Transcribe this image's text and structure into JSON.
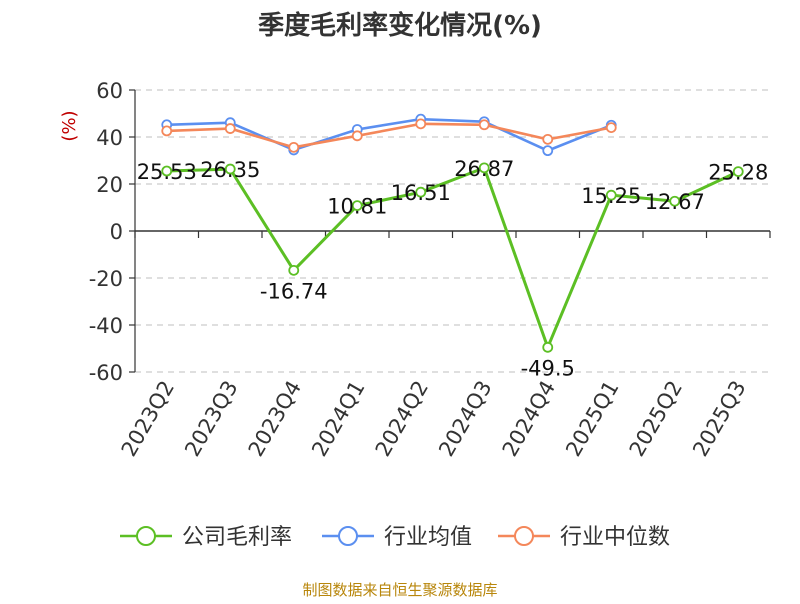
{
  "chart_data": {
    "type": "line",
    "title": "季度毛利率变化情况(%)",
    "ylabel": "(%)",
    "xlabel": "",
    "categories": [
      "2023Q2",
      "2023Q3",
      "2023Q4",
      "2024Q1",
      "2024Q2",
      "2024Q3",
      "2024Q4",
      "2025Q1",
      "2025Q2",
      "2025Q3"
    ],
    "ylim": [
      -60,
      60
    ],
    "yticks": [
      -60,
      -40,
      -20,
      0,
      20,
      40,
      60
    ],
    "grid": true,
    "legend": "bottom",
    "series": [
      {
        "name": "公司毛利率",
        "color": "#5cbf24",
        "values": [
          25.53,
          26.35,
          -16.74,
          10.81,
          16.51,
          26.87,
          -49.5,
          15.25,
          12.67,
          25.28
        ],
        "labels": [
          "25.53",
          "26.35",
          "-16.74",
          "10.81",
          "16.51",
          "26.87",
          "-49.5",
          "15.25",
          "12.67",
          "25.28"
        ]
      },
      {
        "name": "行业均值",
        "color": "#5b8ff0",
        "values": [
          45.2,
          46.1,
          34.5,
          43.2,
          47.6,
          46.5,
          34.2,
          45.0,
          null,
          null
        ]
      },
      {
        "name": "行业中位数",
        "color": "#f4875a",
        "values": [
          42.6,
          43.6,
          35.6,
          40.5,
          45.6,
          45.2,
          39.0,
          44.0,
          null,
          null
        ]
      }
    ]
  },
  "footer": {
    "source": "制图数据来自恒生聚源数据库"
  }
}
